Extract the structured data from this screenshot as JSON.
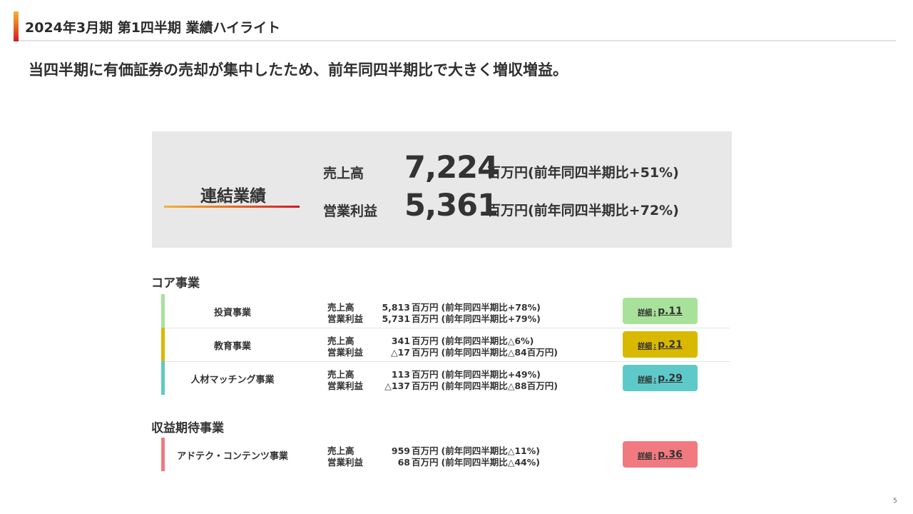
{
  "header": {
    "title": "2024年3月期 第1四半期 業績ハイライト"
  },
  "headline": "当四半期に有価証券の売却が集中したため、前年同四半期比で大きく増収増益。",
  "summary": {
    "label": "連結業績",
    "metrics": [
      {
        "name": "売上高",
        "value": "7,224",
        "note": "百万円(前年同四半期比+51%)"
      },
      {
        "name": "営業利益",
        "value": "5,361",
        "note": "百万円(前年同四半期比+72%)"
      }
    ]
  },
  "sections": {
    "core": {
      "title": "コア事業",
      "rows": [
        {
          "name": "投資事業",
          "color": "#a8e29a",
          "sales_label": "売上高",
          "sales_value": "5,813",
          "sales_unit": "百万円",
          "sales_cmp": "(前年同四半期比+78%)",
          "op_label": "営業利益",
          "op_value": "5,731",
          "op_unit": "百万円",
          "op_cmp": "(前年同四半期比+79%)",
          "detail_label": "詳細",
          "detail_sep": ":",
          "detail_page": "p.11"
        },
        {
          "name": "教育事業",
          "color": "#d8b900",
          "sales_label": "売上高",
          "sales_value": "341",
          "sales_unit": "百万円",
          "sales_cmp": "(前年同四半期比△6%)",
          "op_label": "営業利益",
          "op_value": "△17",
          "op_unit": "百万円",
          "op_cmp": "(前年同四半期比△84百万円)",
          "detail_label": "詳細",
          "detail_sep": ":",
          "detail_page": "p.21"
        },
        {
          "name": "人材マッチング事業",
          "color": "#5ec9c9",
          "sales_label": "売上高",
          "sales_value": "113",
          "sales_unit": "百万円",
          "sales_cmp": "(前年同四半期比+49%)",
          "op_label": "営業利益",
          "op_value": "△137",
          "op_unit": "百万円",
          "op_cmp": "(前年同四半期比△88百万円)",
          "detail_label": "詳細",
          "detail_sep": ":",
          "detail_page": "p.29"
        }
      ]
    },
    "growth": {
      "title": "収益期待事業",
      "rows": [
        {
          "name": "アドテク・コンテンツ事業",
          "color": "#f07a80",
          "sales_label": "売上高",
          "sales_value": "959",
          "sales_unit": "百万円",
          "sales_cmp": "(前年同四半期比△11%)",
          "op_label": "営業利益",
          "op_value": "68",
          "op_unit": "百万円",
          "op_cmp": "(前年同四半期比△44%)",
          "detail_label": "詳細",
          "detail_sep": ":",
          "detail_page": "p.36"
        }
      ]
    }
  },
  "page_number": "5"
}
